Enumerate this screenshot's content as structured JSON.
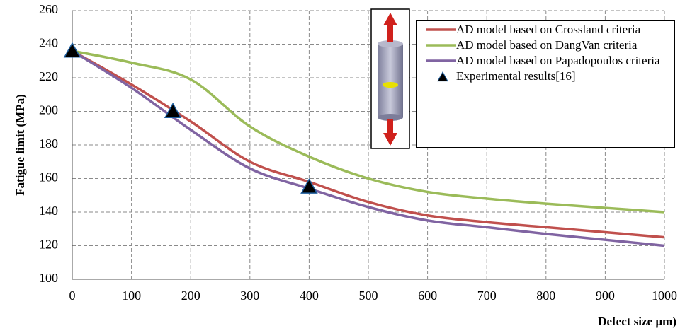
{
  "chart_data": {
    "type": "line",
    "y_label": "Fatigue limit (MPa)",
    "x_label": "Defect size µm)",
    "xlim": [
      0,
      1000
    ],
    "xticks": [
      0,
      100,
      200,
      300,
      400,
      500,
      600,
      700,
      800,
      900,
      1000
    ],
    "ylim": [
      100,
      260
    ],
    "yticks": [
      100,
      120,
      140,
      160,
      180,
      200,
      220,
      240,
      260
    ],
    "grid": true,
    "series": [
      {
        "name": "AD model based on Crossland criteria",
        "color": "#c0504d",
        "x": [
          0,
          100,
          200,
          300,
          400,
          500,
          600,
          700,
          800,
          900,
          1000
        ],
        "values": [
          236,
          216,
          194,
          170,
          158,
          146,
          138,
          134,
          131,
          128,
          125
        ]
      },
      {
        "name": "AD model based on DangVan criteria",
        "color": "#9bbb59",
        "x": [
          0,
          100,
          200,
          300,
          400,
          500,
          600,
          700,
          800,
          900,
          1000
        ],
        "values": [
          236,
          229,
          219,
          191,
          173,
          160,
          152,
          148,
          145,
          142.5,
          140
        ]
      },
      {
        "name": "AD model based on Papadopoulos criteria",
        "color": "#8064a2",
        "x": [
          0,
          100,
          200,
          300,
          400,
          500,
          600,
          700,
          800,
          900,
          1000
        ],
        "values": [
          236,
          214,
          189,
          166,
          154,
          143,
          135,
          131,
          127,
          123.5,
          120
        ]
      },
      {
        "name": "Experimental results[16]",
        "color": "#000000",
        "marker": "triangle",
        "x": [
          0,
          170,
          400
        ],
        "values": [
          236,
          200,
          155
        ]
      }
    ]
  }
}
